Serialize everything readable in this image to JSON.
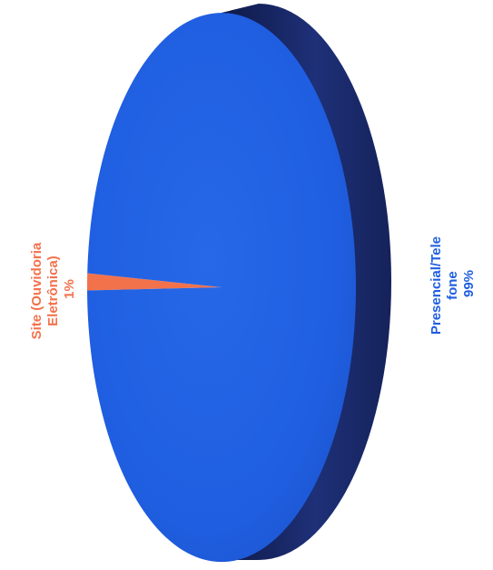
{
  "chart_data": {
    "type": "pie",
    "title": "",
    "slices": [
      {
        "label_lines": [
          "Site (Ouvidoria",
          "Eletrônica)"
        ],
        "value": 1,
        "value_label": "1%",
        "color": "#f2724c"
      },
      {
        "label_lines": [
          "Presencial/Tele",
          "fone"
        ],
        "value": 99,
        "value_label": "99%",
        "color": "#1f5ee0"
      }
    ],
    "style": "3d",
    "side_color": "#1a2a6a",
    "orientation": "rotated-90-clockwise"
  }
}
